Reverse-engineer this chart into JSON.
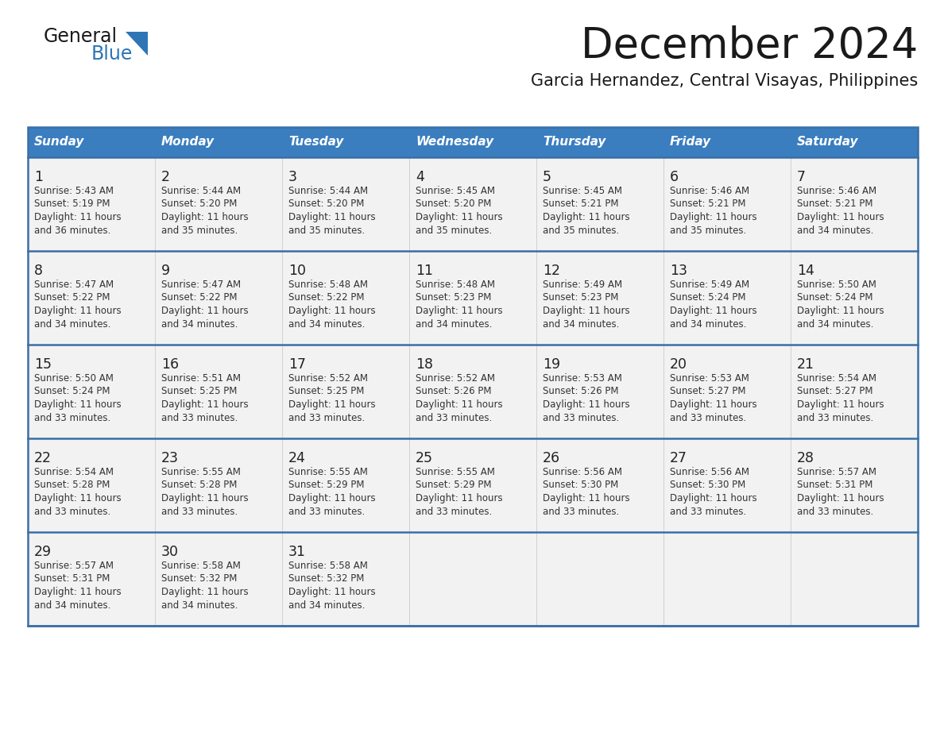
{
  "title": "December 2024",
  "subtitle": "Garcia Hernandez, Central Visayas, Philippines",
  "days_of_week": [
    "Sunday",
    "Monday",
    "Tuesday",
    "Wednesday",
    "Thursday",
    "Friday",
    "Saturday"
  ],
  "header_bg": "#3A7EBF",
  "header_text": "#FFFFFF",
  "row_bg": "#F2F2F2",
  "cell_border_color": "#3A6EA8",
  "day_number_color": "#222222",
  "info_text_color": "#333333",
  "logo_general_color": "#1a1a1a",
  "logo_blue_color": "#2E75B6",
  "title_color": "#1a1a1a",
  "subtitle_color": "#1a1a1a",
  "weeks": [
    [
      {
        "day": 1,
        "sunrise": "5:43 AM",
        "sunset": "5:19 PM",
        "daylight": "11 hours and 36 minutes."
      },
      {
        "day": 2,
        "sunrise": "5:44 AM",
        "sunset": "5:20 PM",
        "daylight": "11 hours and 35 minutes."
      },
      {
        "day": 3,
        "sunrise": "5:44 AM",
        "sunset": "5:20 PM",
        "daylight": "11 hours and 35 minutes."
      },
      {
        "day": 4,
        "sunrise": "5:45 AM",
        "sunset": "5:20 PM",
        "daylight": "11 hours and 35 minutes."
      },
      {
        "day": 5,
        "sunrise": "5:45 AM",
        "sunset": "5:21 PM",
        "daylight": "11 hours and 35 minutes."
      },
      {
        "day": 6,
        "sunrise": "5:46 AM",
        "sunset": "5:21 PM",
        "daylight": "11 hours and 35 minutes."
      },
      {
        "day": 7,
        "sunrise": "5:46 AM",
        "sunset": "5:21 PM",
        "daylight": "11 hours and 34 minutes."
      }
    ],
    [
      {
        "day": 8,
        "sunrise": "5:47 AM",
        "sunset": "5:22 PM",
        "daylight": "11 hours and 34 minutes."
      },
      {
        "day": 9,
        "sunrise": "5:47 AM",
        "sunset": "5:22 PM",
        "daylight": "11 hours and 34 minutes."
      },
      {
        "day": 10,
        "sunrise": "5:48 AM",
        "sunset": "5:22 PM",
        "daylight": "11 hours and 34 minutes."
      },
      {
        "day": 11,
        "sunrise": "5:48 AM",
        "sunset": "5:23 PM",
        "daylight": "11 hours and 34 minutes."
      },
      {
        "day": 12,
        "sunrise": "5:49 AM",
        "sunset": "5:23 PM",
        "daylight": "11 hours and 34 minutes."
      },
      {
        "day": 13,
        "sunrise": "5:49 AM",
        "sunset": "5:24 PM",
        "daylight": "11 hours and 34 minutes."
      },
      {
        "day": 14,
        "sunrise": "5:50 AM",
        "sunset": "5:24 PM",
        "daylight": "11 hours and 34 minutes."
      }
    ],
    [
      {
        "day": 15,
        "sunrise": "5:50 AM",
        "sunset": "5:24 PM",
        "daylight": "11 hours and 33 minutes."
      },
      {
        "day": 16,
        "sunrise": "5:51 AM",
        "sunset": "5:25 PM",
        "daylight": "11 hours and 33 minutes."
      },
      {
        "day": 17,
        "sunrise": "5:52 AM",
        "sunset": "5:25 PM",
        "daylight": "11 hours and 33 minutes."
      },
      {
        "day": 18,
        "sunrise": "5:52 AM",
        "sunset": "5:26 PM",
        "daylight": "11 hours and 33 minutes."
      },
      {
        "day": 19,
        "sunrise": "5:53 AM",
        "sunset": "5:26 PM",
        "daylight": "11 hours and 33 minutes."
      },
      {
        "day": 20,
        "sunrise": "5:53 AM",
        "sunset": "5:27 PM",
        "daylight": "11 hours and 33 minutes."
      },
      {
        "day": 21,
        "sunrise": "5:54 AM",
        "sunset": "5:27 PM",
        "daylight": "11 hours and 33 minutes."
      }
    ],
    [
      {
        "day": 22,
        "sunrise": "5:54 AM",
        "sunset": "5:28 PM",
        "daylight": "11 hours and 33 minutes."
      },
      {
        "day": 23,
        "sunrise": "5:55 AM",
        "sunset": "5:28 PM",
        "daylight": "11 hours and 33 minutes."
      },
      {
        "day": 24,
        "sunrise": "5:55 AM",
        "sunset": "5:29 PM",
        "daylight": "11 hours and 33 minutes."
      },
      {
        "day": 25,
        "sunrise": "5:55 AM",
        "sunset": "5:29 PM",
        "daylight": "11 hours and 33 minutes."
      },
      {
        "day": 26,
        "sunrise": "5:56 AM",
        "sunset": "5:30 PM",
        "daylight": "11 hours and 33 minutes."
      },
      {
        "day": 27,
        "sunrise": "5:56 AM",
        "sunset": "5:30 PM",
        "daylight": "11 hours and 33 minutes."
      },
      {
        "day": 28,
        "sunrise": "5:57 AM",
        "sunset": "5:31 PM",
        "daylight": "11 hours and 33 minutes."
      }
    ],
    [
      {
        "day": 29,
        "sunrise": "5:57 AM",
        "sunset": "5:31 PM",
        "daylight": "11 hours and 34 minutes."
      },
      {
        "day": 30,
        "sunrise": "5:58 AM",
        "sunset": "5:32 PM",
        "daylight": "11 hours and 34 minutes."
      },
      {
        "day": 31,
        "sunrise": "5:58 AM",
        "sunset": "5:32 PM",
        "daylight": "11 hours and 34 minutes."
      },
      null,
      null,
      null,
      null
    ]
  ]
}
